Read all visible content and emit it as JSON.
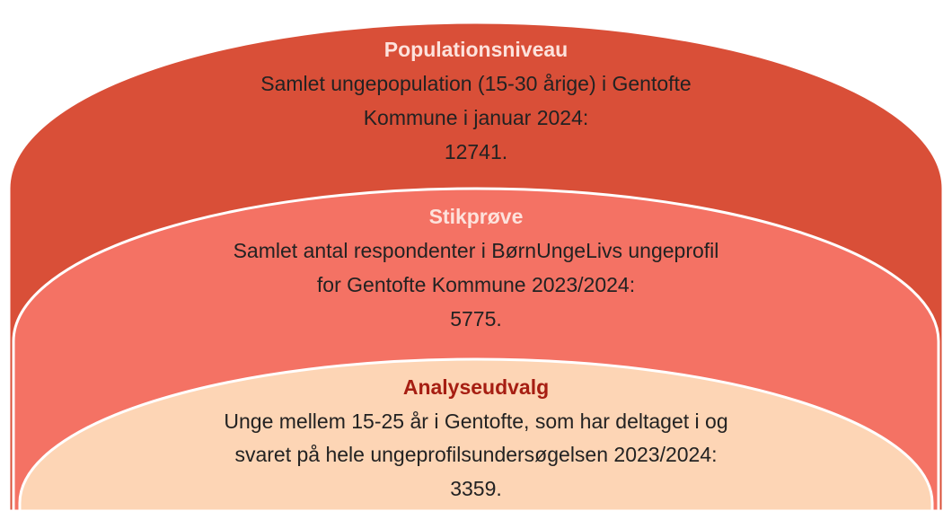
{
  "levels": [
    {
      "title": "Populationsniveau",
      "lines": [
        "Samlet ungepopulation (15-30 årige) i Gentofte",
        "Kommune i januar 2024:",
        "12741."
      ]
    },
    {
      "title": "Stikprøve",
      "lines": [
        "Samlet antal respondenter i BørnUngeLivs ungeprofil",
        "for Gentofte Kommune 2023/2024:",
        "5775."
      ]
    },
    {
      "title": "Analyseudvalg",
      "lines": [
        "Unge mellem 15-25 år i Gentofte, som har deltaget i og",
        "svaret på hele ungeprofilsundersøgelsen 2023/2024:",
        "3359."
      ]
    }
  ]
}
